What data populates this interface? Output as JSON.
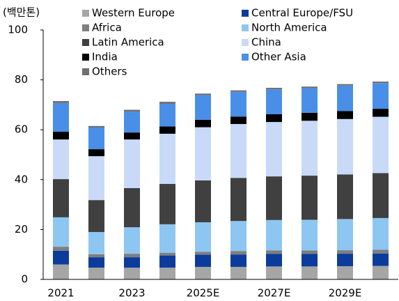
{
  "chart_data": {
    "type": "stacked_bar",
    "y_axis_label": "(백만톤)",
    "categories": [
      "2021",
      null,
      "2023",
      null,
      "2025E",
      null,
      "2027E",
      null,
      "2029E",
      null
    ],
    "series": [
      {
        "name": "Western Europe",
        "color": "#a6a6a6",
        "values": [
          6,
          4.7,
          4.7,
          4.7,
          5,
          5,
          5.2,
          5.2,
          5.3,
          5.4
        ]
      },
      {
        "name": "Central Europe/FSU",
        "color": "#0b3c9c",
        "values": [
          5.5,
          4.2,
          4.2,
          4.9,
          4.9,
          5,
          5,
          5,
          5,
          5
        ]
      },
      {
        "name": "Africa",
        "color": "#7f7f7f",
        "values": [
          1.6,
          1.2,
          1.4,
          1.1,
          1.2,
          1.4,
          1.4,
          1.4,
          1.4,
          1.5
        ]
      },
      {
        "name": "North America",
        "color": "#8ec6f2",
        "values": [
          11.8,
          8.9,
          10.6,
          11.4,
          11.8,
          12,
          12.2,
          12.3,
          12.5,
          12.7
        ]
      },
      {
        "name": "Latin America",
        "color": "#404040",
        "values": [
          15.3,
          12.8,
          15.7,
          16.2,
          16.8,
          17.3,
          17.5,
          17.7,
          17.9,
          18
        ]
      },
      {
        "name": "China",
        "color": "#c9daf8",
        "values": [
          15.9,
          17.6,
          19.5,
          20.1,
          21.3,
          21.6,
          21.8,
          22,
          22.2,
          22.6
        ]
      },
      {
        "name": "India",
        "color": "#000000",
        "values": [
          3.1,
          2.8,
          2.8,
          2.9,
          3,
          3,
          3.1,
          3.2,
          3.2,
          3.2
        ]
      },
      {
        "name": "Other Asia",
        "color": "#4a8fe7",
        "values": [
          11.5,
          8.7,
          8.4,
          9.1,
          9.9,
          9.9,
          10,
          9.9,
          10.2,
          10.3
        ]
      },
      {
        "name": "Others",
        "color": "#6f6f6f",
        "values": [
          0.8,
          0.6,
          0.7,
          0.8,
          0.6,
          0.6,
          0.6,
          0.6,
          0.6,
          0.6
        ]
      }
    ],
    "ylim": [
      0,
      100
    ],
    "yticks": [
      0,
      20,
      40,
      60,
      80,
      100
    ]
  }
}
